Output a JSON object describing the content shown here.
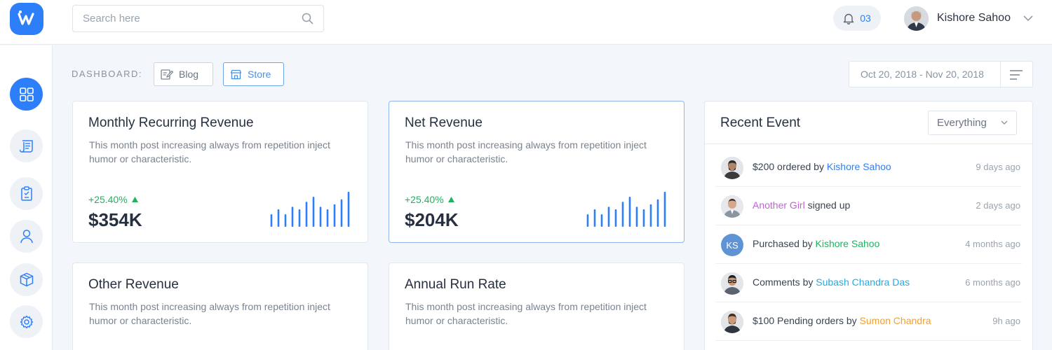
{
  "header": {
    "search_placeholder": "Search here",
    "notifications_count": "03",
    "user_name": "Kishore Sahoo"
  },
  "colors": {
    "accent": "#2d7ff9",
    "success": "#1fb35f",
    "background": "#f3f6fa"
  },
  "sidebar": {
    "items": [
      {
        "icon": "grid-icon",
        "active": true
      },
      {
        "icon": "document-icon",
        "active": false
      },
      {
        "icon": "clipboard-icon",
        "active": false
      },
      {
        "icon": "user-icon",
        "active": false
      },
      {
        "icon": "box-icon",
        "active": false
      },
      {
        "icon": "gear-icon",
        "active": false
      }
    ]
  },
  "breadcrumb": {
    "label": "DASHBOARD:",
    "blog": "Blog",
    "store": "Store"
  },
  "date_range": "Oct 20, 2018 - Nov 20, 2018",
  "cards": [
    {
      "title": "Monthly Recurring Revenue",
      "description": "This month post increasing always from repetition inject humor or characteristic.",
      "growth": "+25.40%",
      "value": "$354K",
      "bars": [
        5,
        7,
        5,
        8,
        7,
        10,
        12,
        8,
        7,
        9,
        11,
        14
      ]
    },
    {
      "title": "Net Revenue",
      "description": "This month post increasing always from repetition inject humor or characteristic.",
      "growth": "+25.40%",
      "value": "$204K",
      "bars": [
        5,
        7,
        5,
        8,
        7,
        10,
        12,
        8,
        7,
        9,
        11,
        14
      ]
    },
    {
      "title": "Other Revenue",
      "description": "This month post increasing always from repetition inject humor or characteristic."
    },
    {
      "title": "Annual Run Rate",
      "description": "This month post increasing always from repetition inject humor or characteristic."
    }
  ],
  "events": {
    "title": "Recent Event",
    "filter": "Everything",
    "items": [
      {
        "pre": "$200 ordered by ",
        "name": "Kishore Sahoo",
        "post": "",
        "time": "9 days ago",
        "color": "c-blue"
      },
      {
        "pre": "",
        "name": "Another Girl",
        "post": " signed up",
        "time": "2 days ago",
        "color": "c-purple"
      },
      {
        "pre": "Purchased by ",
        "name": "Kishore Sahoo",
        "post": "",
        "time": "4 months ago",
        "color": "c-green",
        "initials": "KS"
      },
      {
        "pre": "Comments by ",
        "name": "Subash Chandra Das",
        "post": "",
        "time": "6 months ago",
        "color": "c-cyan"
      },
      {
        "pre": "$100 Pending orders by ",
        "name": "Sumon Chandra",
        "post": "",
        "time": "9h ago",
        "color": "c-orange"
      }
    ]
  }
}
